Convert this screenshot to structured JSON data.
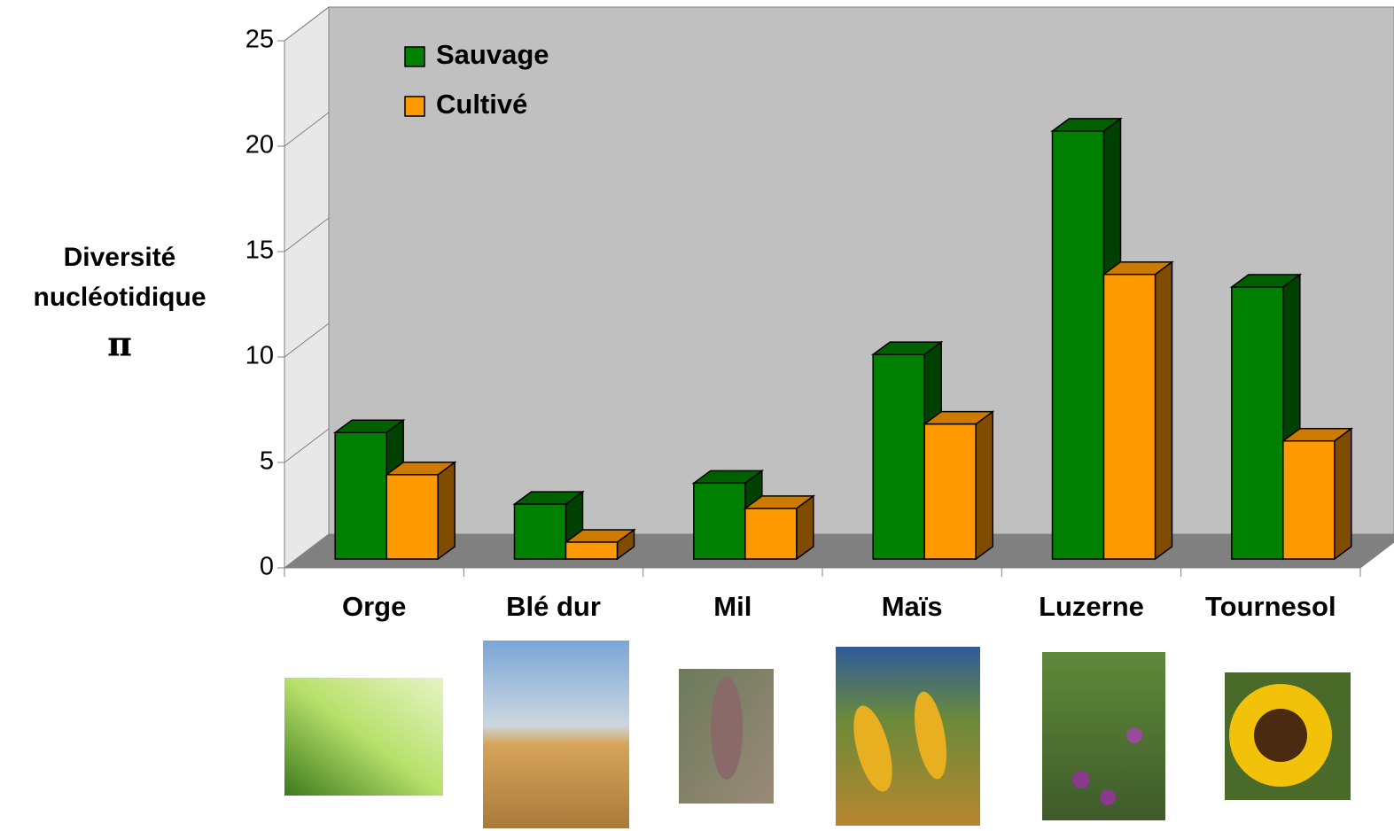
{
  "chart_data": {
    "type": "bar3d",
    "ylabel_lines": [
      "Diversité",
      "nucléotidique",
      "π"
    ],
    "categories": [
      "Orge",
      "Blé dur",
      "Mil",
      "Maïs",
      "Luzerne",
      "Tournesol"
    ],
    "series": [
      {
        "name": "Sauvage",
        "color": "#008000",
        "top_color": "#006000",
        "side_color": "#004000",
        "values": [
          6.0,
          2.6,
          3.6,
          9.7,
          20.3,
          12.9
        ]
      },
      {
        "name": "Cultivé",
        "color": "#ff9900",
        "top_color": "#cc7a00",
        "side_color": "#804c00",
        "values": [
          4.0,
          0.8,
          2.4,
          6.4,
          13.5,
          5.6
        ]
      }
    ],
    "ylim": [
      0,
      25
    ],
    "yticks": [
      0,
      5,
      10,
      15,
      20,
      25
    ],
    "legend": "top-left"
  }
}
